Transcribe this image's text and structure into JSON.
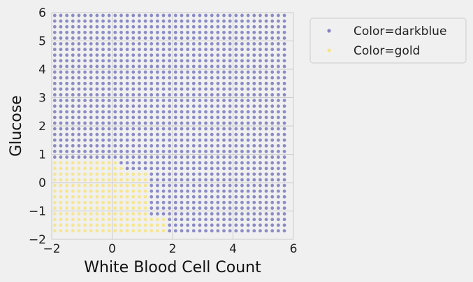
{
  "chart_data": {
    "type": "scatter",
    "title": "",
    "xlabel": "White Blood Cell Count",
    "ylabel": "Glucose",
    "xlim": [
      -2,
      6
    ],
    "ylim": [
      -2,
      6
    ],
    "xticks": [
      -2,
      0,
      2,
      4,
      6
    ],
    "yticks": [
      -2,
      -1,
      0,
      1,
      2,
      3,
      4,
      5,
      6
    ],
    "xtick_labels": [
      "−2",
      "0",
      "2",
      "4",
      "6"
    ],
    "ytick_labels": [
      "−2",
      "−1",
      "0",
      "1",
      "2",
      "3",
      "4",
      "5",
      "6"
    ],
    "grid": true,
    "legend_position": "outside-top-right",
    "grid_points": {
      "x_start": -1.9,
      "x_end": 5.7,
      "x_step": 0.2,
      "y_start": -1.7,
      "y_end": 5.9,
      "y_step": 0.2
    },
    "decision_rule": "gold region: bounded by the diagonal through (1.7,-1.8), (1.1,-1.1), (1.1,0.3), (0.5,0.6) and the top edge at y≈0.7 for x≤-0.3",
    "series": [
      {
        "name": "Color=darkblue",
        "color": "#00008b"
      },
      {
        "name": "Color=gold",
        "color": "#ffd700"
      }
    ]
  }
}
